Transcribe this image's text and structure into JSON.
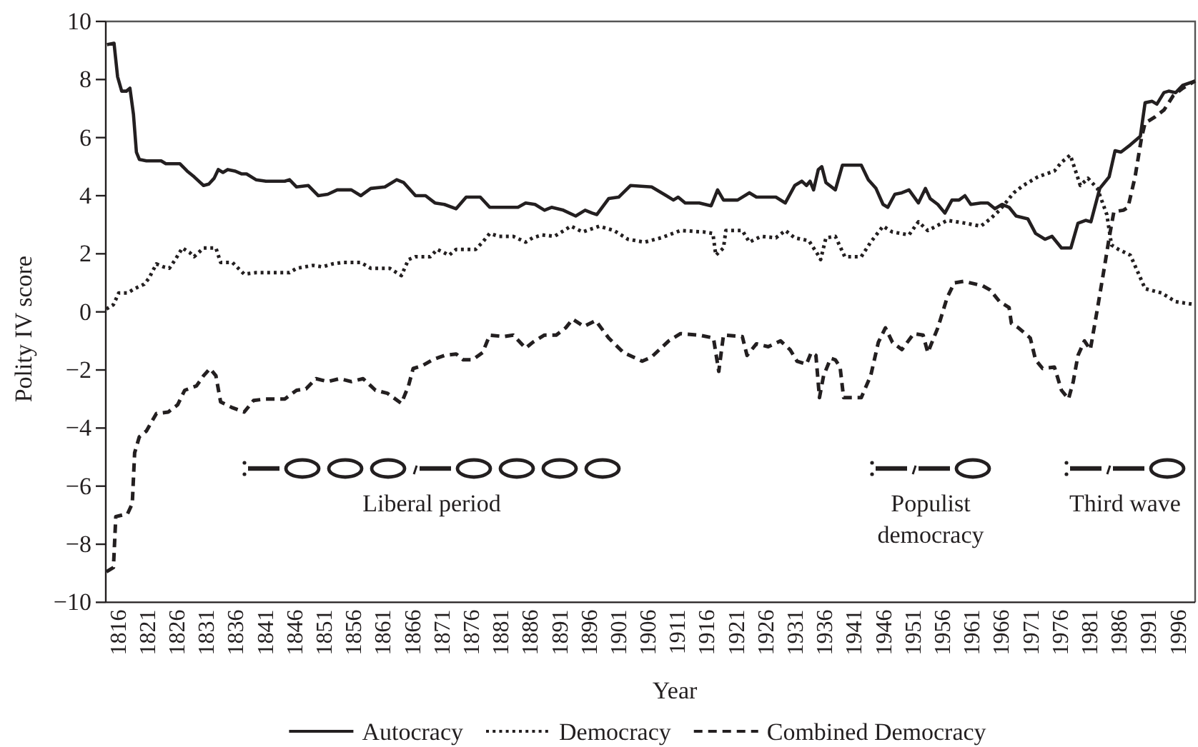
{
  "chart_data": {
    "type": "line",
    "xlabel": "Year",
    "ylabel": "Polity IV score",
    "xlim": [
      1814,
      1999
    ],
    "xticks": [
      1816,
      1821,
      1826,
      1831,
      1836,
      1841,
      1846,
      1851,
      1856,
      1861,
      1866,
      1871,
      1876,
      1881,
      1886,
      1891,
      1896,
      1901,
      1906,
      1911,
      1916,
      1921,
      1926,
      1931,
      1936,
      1941,
      1946,
      1951,
      1956,
      1961,
      1966,
      1971,
      1976,
      1981,
      1986,
      1991,
      1996
    ],
    "ylim": [
      -10,
      10
    ],
    "yticks": [
      -10,
      -8,
      -6,
      -4,
      -2,
      0,
      2,
      4,
      6,
      8,
      10
    ],
    "legend": "bottom",
    "series": [
      {
        "name": "Autocracy",
        "color": "#231f20",
        "line_style": "solid",
        "x": [
          1814.2,
          1815.4,
          1816,
          1816.7,
          1817.5,
          1818.1,
          1818.7,
          1819.2,
          1819.7,
          1820.9,
          1823.4,
          1824.2,
          1826.6,
          1827.8,
          1829,
          1830.6,
          1831.5,
          1832.4,
          1833.1,
          1833.9,
          1834.7,
          1835.9,
          1837.1,
          1837.9,
          1839.5,
          1841.2,
          1844.4,
          1845.2,
          1846.4,
          1848.4,
          1850.1,
          1851.7,
          1853.3,
          1855.7,
          1857.3,
          1859,
          1861.4,
          1863.4,
          1864.6,
          1866.6,
          1868.3,
          1869.9,
          1871.5,
          1873.5,
          1875.2,
          1877.6,
          1879.2,
          1884,
          1885.3,
          1886.9,
          1888.5,
          1889.7,
          1891.7,
          1893.8,
          1895.4,
          1896.6,
          1897.4,
          1899.4,
          1901.1,
          1903.1,
          1906.7,
          1909.2,
          1910.4,
          1911.2,
          1912.4,
          1914.8,
          1916.8,
          1917.9,
          1918.9,
          1921.3,
          1923.3,
          1924.5,
          1927.8,
          1929.4,
          1931,
          1932.2,
          1933,
          1933.6,
          1934.2,
          1935,
          1935.6,
          1936.3,
          1937.9,
          1939.1,
          1942.3,
          1943.5,
          1944.8,
          1946,
          1946.8,
          1948,
          1949.2,
          1950.4,
          1952,
          1953.2,
          1954,
          1955.3,
          1956.5,
          1957.7,
          1958.9,
          1959.9,
          1960.9,
          1962.6,
          1963.8,
          1965,
          1966.2,
          1967.4,
          1968.6,
          1970.6,
          1971.9,
          1973.5,
          1974.7,
          1976.3,
          1977.9,
          1979.1,
          1980.4,
          1981.3,
          1982.8,
          1984.4,
          1985.4,
          1986.4,
          1988,
          1989.7,
          1990.5,
          1991.7,
          1992.5,
          1993.7,
          1994.5,
          1995.7,
          1996.9,
          1999
        ],
        "values": [
          9.2,
          9.25,
          8.1,
          7.6,
          7.6,
          7.7,
          6.8,
          5.5,
          5.25,
          5.2,
          5.2,
          5.1,
          5.1,
          4.85,
          4.65,
          4.35,
          4.4,
          4.6,
          4.9,
          4.8,
          4.9,
          4.85,
          4.75,
          4.75,
          4.55,
          4.5,
          4.5,
          4.55,
          4.3,
          4.35,
          4.0,
          4.05,
          4.2,
          4.2,
          4.0,
          4.25,
          4.3,
          4.55,
          4.45,
          4.0,
          4.0,
          3.75,
          3.7,
          3.55,
          3.95,
          3.95,
          3.6,
          3.6,
          3.75,
          3.7,
          3.5,
          3.6,
          3.5,
          3.3,
          3.5,
          3.4,
          3.35,
          3.9,
          3.95,
          4.35,
          4.3,
          4.0,
          3.85,
          3.95,
          3.75,
          3.75,
          3.65,
          4.2,
          3.85,
          3.85,
          4.1,
          3.95,
          3.95,
          3.75,
          4.35,
          4.5,
          4.35,
          4.5,
          4.2,
          4.9,
          5.0,
          4.45,
          4.2,
          5.05,
          5.05,
          4.55,
          4.25,
          3.7,
          3.6,
          4.05,
          4.1,
          4.2,
          3.75,
          4.25,
          3.9,
          3.7,
          3.4,
          3.85,
          3.85,
          4.0,
          3.7,
          3.75,
          3.75,
          3.55,
          3.7,
          3.6,
          3.3,
          3.2,
          2.7,
          2.5,
          2.6,
          2.2,
          2.2,
          3.05,
          3.15,
          3.1,
          4.25,
          4.65,
          5.55,
          5.5,
          5.75,
          6.05,
          7.2,
          7.25,
          7.15,
          7.55,
          7.6,
          7.55,
          7.8,
          7.95
        ]
      },
      {
        "name": "Democracy",
        "color": "#231f20",
        "line_style": "dotted",
        "x": [
          1814.1,
          1815.3,
          1816.2,
          1817.7,
          1818.9,
          1820.5,
          1821.3,
          1822.6,
          1823.8,
          1824.8,
          1825.8,
          1827,
          1828.2,
          1829,
          1830.6,
          1832.7,
          1833.5,
          1835.5,
          1837.5,
          1839.5,
          1845.2,
          1846.4,
          1849.2,
          1850.8,
          1852.5,
          1854.1,
          1857.3,
          1859,
          1862.2,
          1864.2,
          1865.4,
          1866.6,
          1869.1,
          1870.3,
          1872.3,
          1873.5,
          1876.8,
          1878,
          1879.2,
          1880.8,
          1883.2,
          1885.3,
          1886.5,
          1888.1,
          1890.2,
          1893,
          1895,
          1897.8,
          1900.3,
          1902.7,
          1905.5,
          1908.3,
          1911.6,
          1915.6,
          1917.1,
          1917.6,
          1918.9,
          1919.3,
          1922.1,
          1923.3,
          1925.3,
          1927.8,
          1929.4,
          1931,
          1933.4,
          1935,
          1935.4,
          1936.3,
          1937.9,
          1939.5,
          1942.3,
          1943.9,
          1946,
          1947.6,
          1950.4,
          1952,
          1953.6,
          1956.9,
          1960.1,
          1962.6,
          1964.2,
          1965.8,
          1968.2,
          1969.8,
          1972.3,
          1975.1,
          1976.3,
          1977.8,
          1978.7,
          1979.5,
          1980.8,
          1982.4,
          1984,
          1984.8,
          1986,
          1988,
          1989.2,
          1990.5,
          1993.3,
          1995.7,
          1999
        ],
        "values": [
          0.1,
          0.25,
          0.65,
          0.65,
          0.8,
          0.95,
          1.15,
          1.65,
          1.55,
          1.5,
          1.8,
          2.2,
          2.05,
          1.9,
          2.2,
          2.2,
          1.7,
          1.7,
          1.3,
          1.35,
          1.35,
          1.5,
          1.6,
          1.55,
          1.65,
          1.7,
          1.7,
          1.5,
          1.5,
          1.25,
          1.8,
          1.9,
          1.9,
          2.15,
          1.95,
          2.15,
          2.15,
          2.4,
          2.7,
          2.6,
          2.6,
          2.4,
          2.55,
          2.65,
          2.6,
          2.95,
          2.75,
          2.95,
          2.8,
          2.5,
          2.4,
          2.55,
          2.8,
          2.75,
          2.7,
          1.95,
          2.2,
          2.8,
          2.8,
          2.4,
          2.6,
          2.55,
          2.8,
          2.55,
          2.45,
          1.95,
          1.8,
          2.55,
          2.6,
          1.9,
          1.9,
          2.4,
          2.95,
          2.75,
          2.65,
          3.1,
          2.8,
          3.15,
          3.05,
          2.95,
          3.2,
          3.5,
          4.1,
          4.35,
          4.65,
          4.85,
          5.15,
          5.4,
          4.85,
          4.35,
          4.6,
          4.25,
          3.35,
          2.3,
          2.15,
          1.95,
          1.4,
          0.8,
          0.65,
          0.35,
          0.25
        ]
      },
      {
        "name": "Combined Democracy",
        "color": "#231f20",
        "line_style": "dashed",
        "x": [
          1814.1,
          1815.3,
          1815.7,
          1817.7,
          1818.5,
          1818.9,
          1819.7,
          1820.9,
          1822.6,
          1824.6,
          1826.2,
          1827.4,
          1829.4,
          1830.6,
          1831.7,
          1832.7,
          1833.5,
          1835.5,
          1837.5,
          1839.1,
          1841.2,
          1844.4,
          1846.4,
          1848,
          1849.7,
          1851.7,
          1853.7,
          1855.7,
          1857.7,
          1859.8,
          1861.8,
          1864.2,
          1865.4,
          1866.2,
          1867.8,
          1869.5,
          1871.5,
          1873.5,
          1874.7,
          1876.3,
          1878,
          1879.2,
          1881.6,
          1883.2,
          1885.3,
          1886.5,
          1888.5,
          1890.5,
          1892.1,
          1893.3,
          1895.2,
          1897.2,
          1899.4,
          1901.9,
          1905.1,
          1906.7,
          1909.6,
          1911.6,
          1914.8,
          1917.2,
          1918.1,
          1918.9,
          1922.1,
          1922.9,
          1924.5,
          1926.5,
          1928.6,
          1930.2,
          1931.4,
          1933,
          1933.8,
          1934.6,
          1935.2,
          1935.9,
          1937.1,
          1937.9,
          1938.7,
          1939.3,
          1942.3,
          1943.9,
          1945.2,
          1946.4,
          1947.6,
          1949.2,
          1951.2,
          1952.8,
          1953.6,
          1955.3,
          1956.9,
          1958.1,
          1959.7,
          1962.9,
          1964.2,
          1965.8,
          1967.4,
          1967.8,
          1969,
          1971,
          1971.9,
          1973.1,
          1975.1,
          1976.3,
          1977.5,
          1978.3,
          1979.1,
          1980.2,
          1981.2,
          1982.4,
          1983.6,
          1984.4,
          1985.2,
          1986.8,
          1987.6,
          1988.8,
          1989.9,
          1990.5,
          1992.1,
          1993.7,
          1995.3,
          1996.9,
          1999
        ],
        "values": [
          -8.95,
          -8.8,
          -7.05,
          -6.95,
          -6.6,
          -4.85,
          -4.3,
          -4.1,
          -3.5,
          -3.45,
          -3.2,
          -2.7,
          -2.55,
          -2.2,
          -1.95,
          -2.2,
          -3.1,
          -3.3,
          -3.45,
          -3.05,
          -3.0,
          -3.0,
          -2.7,
          -2.65,
          -2.3,
          -2.4,
          -2.3,
          -2.4,
          -2.3,
          -2.7,
          -2.8,
          -3.15,
          -2.55,
          -1.95,
          -1.85,
          -1.65,
          -1.5,
          -1.45,
          -1.65,
          -1.65,
          -1.4,
          -0.8,
          -0.85,
          -0.8,
          -1.25,
          -1.05,
          -0.8,
          -0.8,
          -0.55,
          -0.25,
          -0.5,
          -0.3,
          -0.9,
          -1.4,
          -1.7,
          -1.55,
          -1.0,
          -0.75,
          -0.8,
          -0.9,
          -2.05,
          -0.8,
          -0.85,
          -1.5,
          -1.1,
          -1.2,
          -1.0,
          -1.3,
          -1.7,
          -1.8,
          -1.4,
          -1.5,
          -2.95,
          -2.2,
          -1.6,
          -1.65,
          -1.9,
          -2.95,
          -2.95,
          -2.2,
          -1.05,
          -0.55,
          -1.05,
          -1.3,
          -0.75,
          -0.8,
          -1.4,
          -0.55,
          0.5,
          1.0,
          1.05,
          0.9,
          0.75,
          0.35,
          0.15,
          -0.4,
          -0.55,
          -0.9,
          -1.65,
          -1.95,
          -1.9,
          -2.7,
          -3.0,
          -2.4,
          -1.5,
          -1.0,
          -1.3,
          0.1,
          1.55,
          2.55,
          3.45,
          3.5,
          3.6,
          4.65,
          6.0,
          6.5,
          6.7,
          6.95,
          7.45,
          7.7,
          7.95
        ]
      }
    ],
    "annotations": [
      "Liberal period",
      "Populist democracy",
      "Third wave"
    ]
  }
}
